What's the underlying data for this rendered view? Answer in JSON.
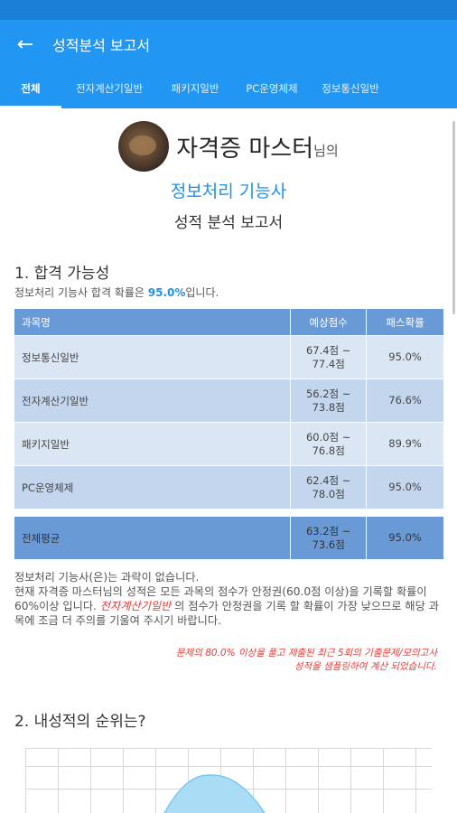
{
  "appbar": {
    "title": "성적분석 보고서",
    "back_icon": "arrow-left-icon"
  },
  "tabs": [
    "전체",
    "전자계산기일반",
    "패키지일반",
    "PC운영체제",
    "정보통신일반"
  ],
  "header": {
    "user_name": "자격증 마스터",
    "user_suffix": "님의",
    "cert_name": "정보처리 기능사",
    "report_title": "성적 분석 보고서"
  },
  "section1": {
    "title": "1. 합격 가능성",
    "sub_pre": "정보처리 기능사 합격 확률은 ",
    "sub_pct": "95.0%",
    "sub_post": "입니다.",
    "table": {
      "headers": [
        "과목명",
        "예상점수",
        "패스확률"
      ],
      "rows": [
        {
          "subject": "정보통신일반",
          "score_low": "67.4점 ~",
          "score_high": "77.4점",
          "pass": "95.0%"
        },
        {
          "subject": "전자계산기일반",
          "score_low": "56.2점 ~",
          "score_high": "73.8점",
          "pass": "76.6%"
        },
        {
          "subject": "패키지일반",
          "score_low": "60.0점 ~",
          "score_high": "76.8점",
          "pass": "89.9%"
        },
        {
          "subject": "PC운영체제",
          "score_low": "62.4점 ~",
          "score_high": "78.0점",
          "pass": "95.0%"
        }
      ],
      "total": {
        "subject": "전체평균",
        "score_low": "63.2점 ~",
        "score_high": "73.6점",
        "pass": "95.0%"
      }
    },
    "para_line1": "정보처리 기능사(은)는 과락이 없습니다.",
    "para_line2_pre": "현재 자격증 마스터님의 성적은 모든 과목의 점수가 안정권(60.0점 이상)을 기록할 확률이 60%이상 입니다. ",
    "para_red": "전자계산기일반",
    "para_line2_post": " 의 점수가 안정권을 기록 할 확률이 가장 낮으므로 해당 과목에 조금 더 주의를 기울여 주시기 바랍니다.",
    "note": "문제의 80.0% 이상을 풀고 제출된 최근 5회의 기출문제/모의고사 성적을 샘플링하여 계산 되었습니다."
  },
  "section2": {
    "title": "2. 내성적의 순위는?"
  },
  "colors": {
    "primary": "#2196f3",
    "accent_blue": "#1e90e6",
    "table_header": "#6a9ad6",
    "warning": "#e53935"
  }
}
